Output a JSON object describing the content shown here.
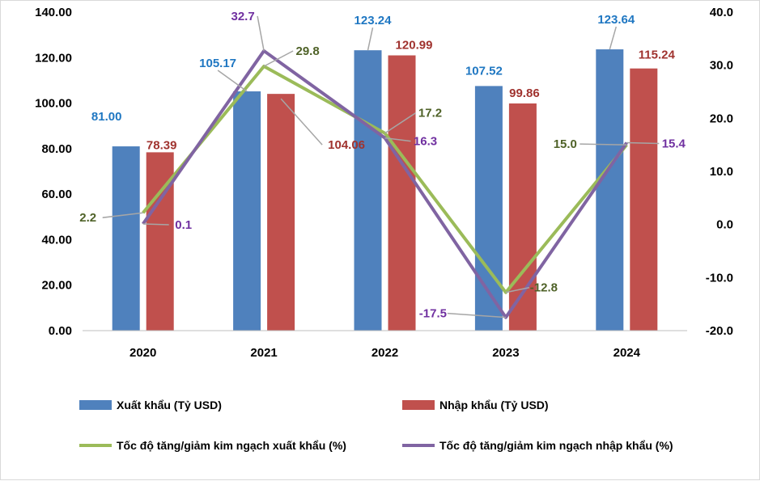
{
  "chart_data": {
    "type": "bar",
    "categories": [
      "2020",
      "2021",
      "2022",
      "2023",
      "2024"
    ],
    "series": [
      {
        "name": "Xuất khẩu (Tỷ USD)",
        "kind": "bar",
        "axis": "left",
        "color": "#4f81bd",
        "label_color": "#1f77c2",
        "values": [
          81.0,
          105.17,
          123.24,
          107.52,
          123.64
        ],
        "labels": [
          "81.00",
          "105.17",
          "123.24",
          "107.52",
          "123.64"
        ]
      },
      {
        "name": "Nhập khẩu (Tỷ USD)",
        "kind": "bar",
        "axis": "left",
        "color": "#c0504d",
        "label_color": "#a0332f",
        "values": [
          78.39,
          104.06,
          120.99,
          99.86,
          115.24
        ],
        "labels": [
          "78.39",
          "104.06",
          "120.99",
          "99.86",
          "115.24"
        ]
      },
      {
        "name": "Tốc độ tăng/giảm kim ngạch xuất khẩu (%)",
        "kind": "line",
        "axis": "right",
        "color": "#9bbb59",
        "label_color": "#4f6228",
        "values": [
          2.2,
          29.8,
          17.2,
          -12.8,
          15.0
        ],
        "labels": [
          "2.2",
          "29.8",
          "17.2",
          "-12.8",
          "15.0"
        ]
      },
      {
        "name": "Tốc độ tăng/giảm kim ngạch nhập khẩu (%)",
        "kind": "line",
        "axis": "right",
        "color": "#8064a2",
        "label_color": "#7030a0",
        "values": [
          0.1,
          32.7,
          16.3,
          -17.5,
          15.4
        ],
        "labels": [
          "0.1",
          "32.7",
          "16.3",
          "-17.5",
          "15.4"
        ]
      }
    ],
    "left_axis": {
      "min": 0,
      "max": 140,
      "step": 20,
      "tick_labels": [
        "0.00",
        "20.00",
        "40.00",
        "60.00",
        "80.00",
        "100.00",
        "120.00",
        "140.00"
      ]
    },
    "right_axis": {
      "min": -20,
      "max": 40,
      "step": 10,
      "tick_labels": [
        "-20.0",
        "-10.0",
        "0.0",
        "10.0",
        "20.0",
        "30.0",
        "40.0"
      ]
    },
    "title": "",
    "xlabel": "",
    "ylabel": "",
    "grid": false,
    "legend": "bottom"
  }
}
